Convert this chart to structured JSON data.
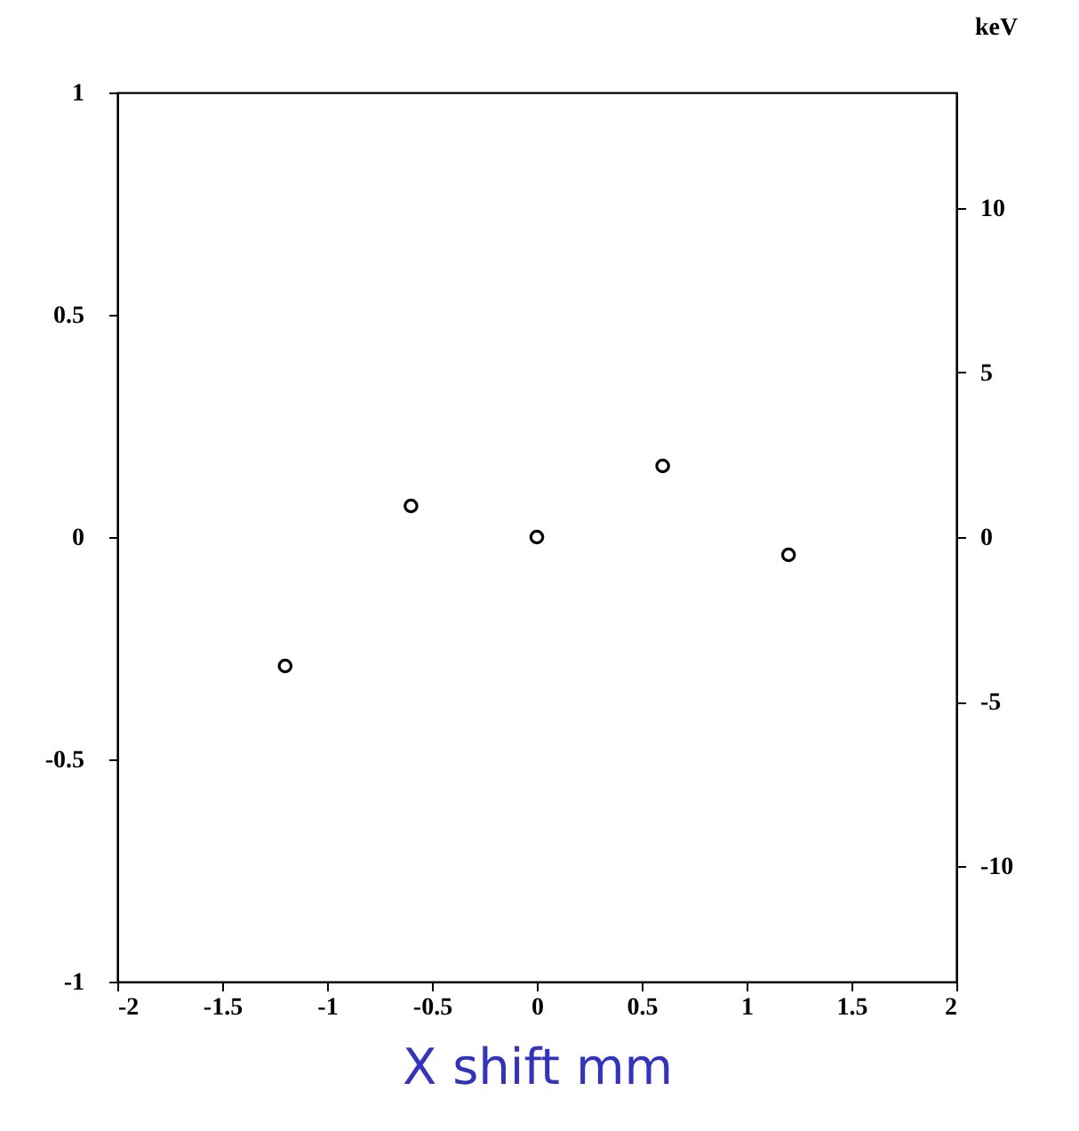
{
  "chart_data": {
    "type": "scatter",
    "xlabel": "X shift      mm",
    "y2label": "keV",
    "x": [
      -1.2,
      -0.6,
      0,
      0.6,
      1.2
    ],
    "series": [
      {
        "color": "#000000",
        "values": [
          -0.29,
          0.07,
          0,
          0.16,
          -0.04
        ]
      }
    ],
    "marker": "circle",
    "grid": false,
    "xlim": [
      -2,
      2
    ],
    "xticks": [
      -2,
      -1.5,
      -1,
      -0.5,
      0,
      0.5,
      1,
      1.5,
      2
    ],
    "ylim": [
      -1,
      1
    ],
    "yticks": [
      -1,
      -0.5,
      0,
      0.5,
      1
    ],
    "y2lim": [
      -13.5,
      13.5
    ],
    "y2ticks": [
      -10,
      -5,
      0,
      5,
      10
    ]
  }
}
